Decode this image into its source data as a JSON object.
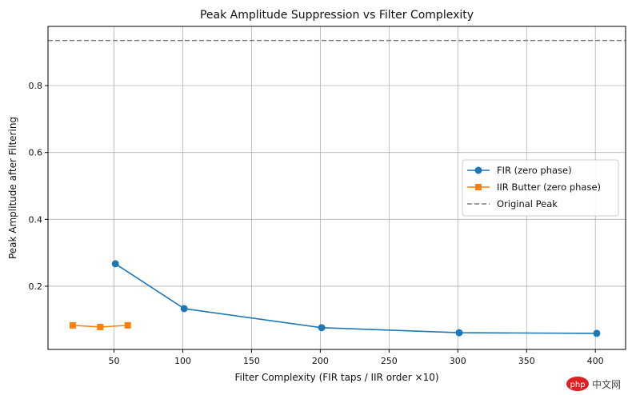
{
  "chart_data": {
    "type": "line",
    "title": "Peak Amplitude Suppression vs Filter Complexity",
    "xlabel": "Filter Complexity (FIR taps / IIR order ×10)",
    "ylabel": "Peak Amplitude after Filtering",
    "xlim": [
      2,
      422
    ],
    "ylim": [
      0.011,
      0.977
    ],
    "xticks": [
      50,
      100,
      150,
      200,
      250,
      300,
      350,
      400
    ],
    "yticks": [
      0.2,
      0.4,
      0.6,
      0.8
    ],
    "ytick_labels": [
      "0.2",
      "0.4",
      "0.6",
      "0.8"
    ],
    "grid": true,
    "legend_position": "center-right",
    "series": [
      {
        "name": "FIR (zero phase)",
        "color": "#1f77b4",
        "marker": "circle",
        "x": [
          51,
          101,
          201,
          301,
          401
        ],
        "y": [
          0.267,
          0.133,
          0.076,
          0.061,
          0.059
        ]
      },
      {
        "name": "IIR Butter (zero phase)",
        "color": "#ff7f0e",
        "marker": "square",
        "x": [
          20,
          40,
          60
        ],
        "y": [
          0.083,
          0.078,
          0.083
        ]
      }
    ],
    "hlines": [
      {
        "name": "Original Peak",
        "y": 0.935,
        "color": "#7f7f7f",
        "style": "dashed"
      }
    ]
  },
  "watermark": "php中文网"
}
